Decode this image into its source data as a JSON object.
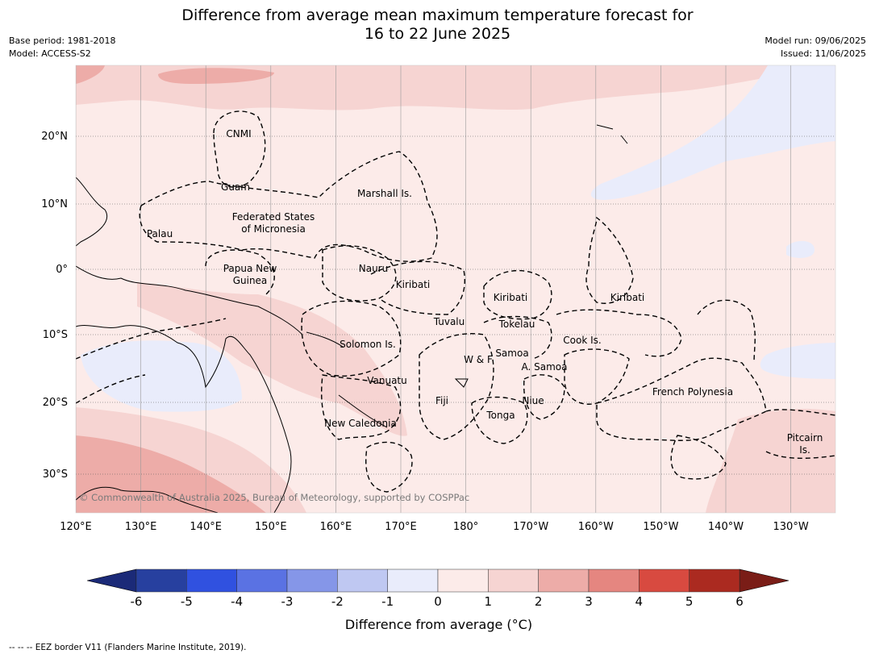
{
  "header": {
    "title_line1": "Difference from average mean maximum temperature forecast for",
    "title_line2": "16 to 22 June 2025",
    "base_period": "Base period: 1981-2018",
    "model": "Model: ACCESS-S2",
    "model_run": "Model run: 09/06/2025",
    "issued": "Issued: 11/06/2025"
  },
  "map": {
    "lon_ticks": [
      "120°E",
      "130°E",
      "140°E",
      "150°E",
      "160°E",
      "170°E",
      "180°",
      "170°W",
      "160°W",
      "150°W",
      "140°W",
      "130°W"
    ],
    "lat_ticks": [
      "20°N",
      "10°N",
      "0°",
      "10°S",
      "20°S",
      "30°S"
    ],
    "regions": {
      "cnmi": "CNMI",
      "guam": "Guam",
      "marshall": "Marshall Is.",
      "fsm_1": "Federated States",
      "fsm_2": "of Micronesia",
      "palau": "Palau",
      "png_1": "Papua New",
      "png_2": "Guinea",
      "nauru": "Nauru",
      "kiribati_w": "Kiribati",
      "kiribati_c": "Kiribati",
      "kiribati_e": "Kiribati",
      "tuvalu": "Tuvalu",
      "tokelau": "Tokelau",
      "cook": "Cook Is.",
      "solomon": "Solomon Is.",
      "samoa": "Samoa",
      "wf": "W & F",
      "asamoa": "A. Samoa",
      "vanuatu": "Vanuatu",
      "fiji": "Fiji",
      "niue": "Niue",
      "tonga": "Tonga",
      "fpoly": "French Polynesia",
      "newcal": "New Caledonia",
      "pitcairn_1": "Pitcairn",
      "pitcairn_2": "Is."
    },
    "copyright": "© Commonwealth of Australia 2025, Bureau of Meteorology, supported by COSPPac"
  },
  "colorbar": {
    "ticks": [
      "-6",
      "-5",
      "-4",
      "-3",
      "-2",
      "-1",
      "0",
      "1",
      "2",
      "3",
      "4",
      "5",
      "6"
    ],
    "colors": [
      "#27409f",
      "#3051e0",
      "#5a72e3",
      "#8596e8",
      "#bfc8f2",
      "#e9ecfb",
      "#fcebe9",
      "#f6d4d2",
      "#edaca8",
      "#e58680",
      "#d84a40",
      "#ab2a20"
    ],
    "extend_low": "#1b2a78",
    "extend_high": "#7a1d17",
    "label": "Difference from average (°C)"
  },
  "footer": {
    "text": "--  --  -- EEZ border V11 (Flanders Marine Institute, 2019)."
  }
}
